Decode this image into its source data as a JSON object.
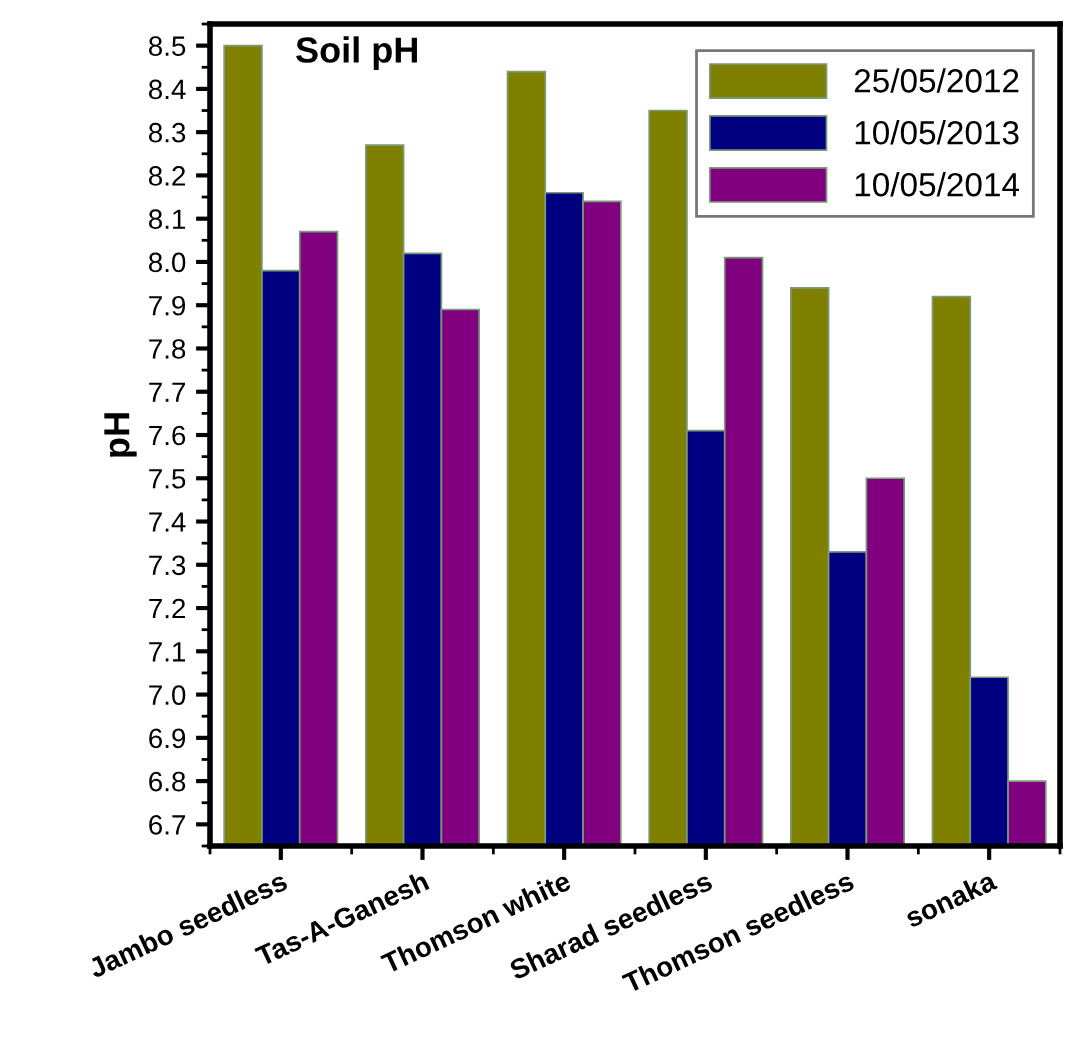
{
  "chart_data": {
    "type": "bar",
    "title": "Soil pH",
    "ylabel": "pH",
    "categories": [
      "Jambo seedless",
      "Tas-A-Ganesh",
      "Thomson white",
      "Sharad seedless",
      "Thomson seedless",
      "sonaka"
    ],
    "series": [
      {
        "name": "25/05/2012",
        "color": "#808000",
        "values": [
          8.5,
          8.27,
          8.44,
          8.35,
          7.94,
          7.92
        ]
      },
      {
        "name": "10/05/2013",
        "color": "#000080",
        "values": [
          7.98,
          8.02,
          8.16,
          7.61,
          7.33,
          7.04
        ]
      },
      {
        "name": "10/05/2014",
        "color": "#800080",
        "values": [
          8.07,
          7.89,
          8.14,
          8.01,
          7.5,
          6.8
        ]
      }
    ],
    "ylim": [
      6.65,
      8.55
    ],
    "yticks": [
      6.7,
      6.8,
      6.9,
      {
        "value": 7.0,
        "label": "7.0"
      },
      7.1,
      7.2,
      7.3,
      7.4,
      7.5,
      7.6,
      7.7,
      7.8,
      7.9,
      {
        "value": 8.0,
        "label": "8.0"
      },
      8.1,
      8.2,
      8.3,
      8.4,
      8.5
    ],
    "grid": false,
    "legend": "top right"
  }
}
